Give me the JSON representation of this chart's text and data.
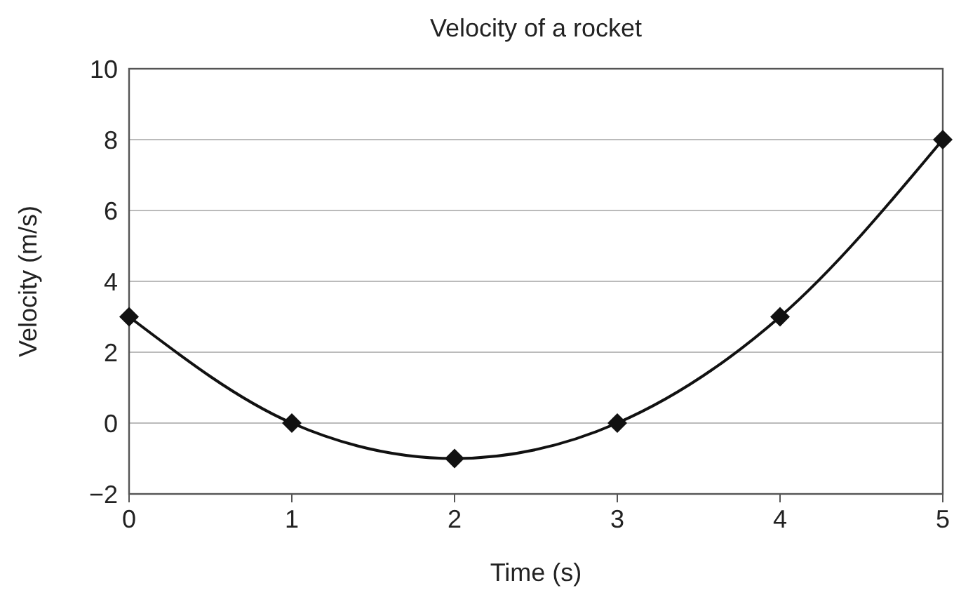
{
  "chart_data": {
    "type": "line",
    "title": "Velocity of a rocket",
    "xlabel": "Time (s)",
    "ylabel": "Velocity (m/s)",
    "x": [
      0,
      1,
      2,
      3,
      4,
      5
    ],
    "series": [
      {
        "color": "#111111",
        "values": [
          3,
          0,
          -1,
          0,
          3,
          8
        ]
      }
    ],
    "xlim": [
      0,
      5
    ],
    "xticks": [
      0,
      1,
      2,
      3,
      4,
      5
    ],
    "ylim": [
      -2,
      10
    ],
    "yticks": [
      {
        "value": -2,
        "label": "−2"
      },
      0,
      2,
      4,
      6,
      8,
      10
    ],
    "grid": "y",
    "marker": "diamond",
    "line_style": "solid"
  }
}
